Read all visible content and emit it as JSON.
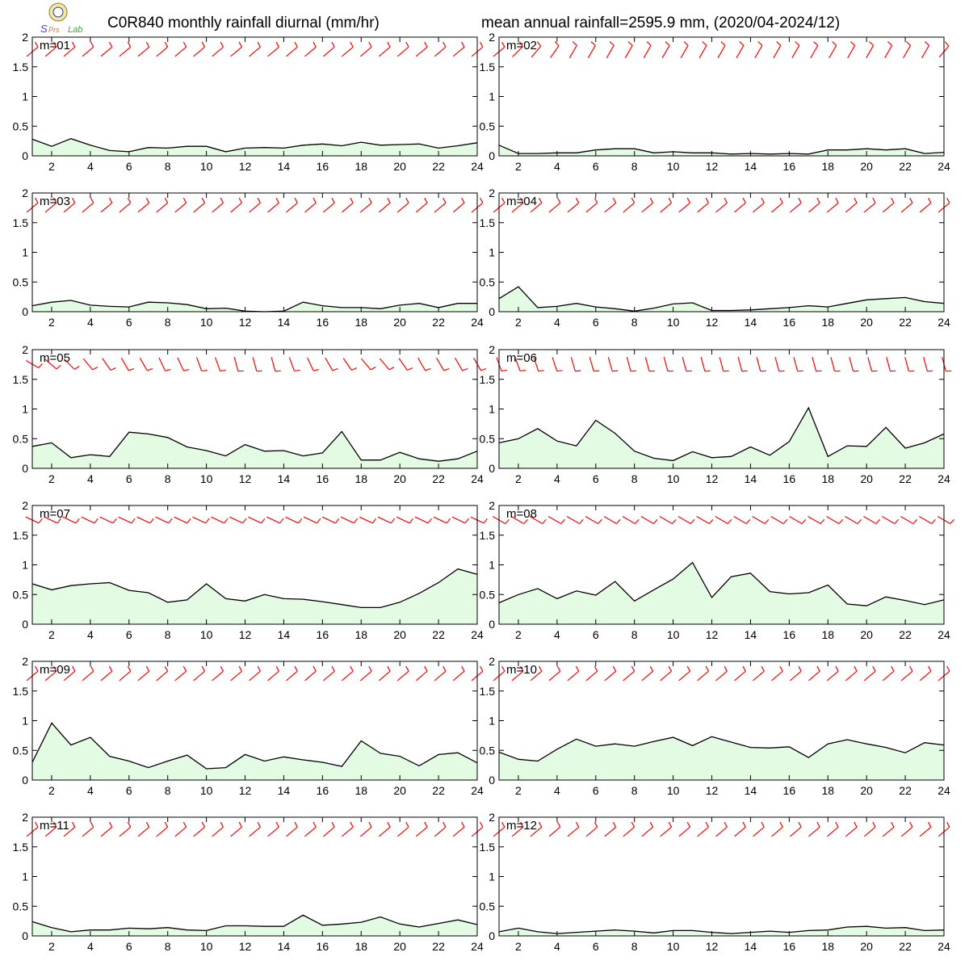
{
  "header": {
    "title_left": "C0R840 monthly rainfall diurnal (mm/hr)",
    "title_right": "mean annual rainfall=2595.9 mm, (2020/04-2024/12)"
  },
  "logo": {
    "icon": "lab-logo-icon",
    "text": "Lab"
  },
  "colors": {
    "fill": "#e3fbe3",
    "line": "#000000",
    "wind_barb": "#ff0000"
  },
  "chart_data": {
    "type": "area",
    "panel_count": 12,
    "x": [
      1,
      2,
      3,
      4,
      5,
      6,
      7,
      8,
      9,
      10,
      11,
      12,
      13,
      14,
      15,
      16,
      17,
      18,
      19,
      20,
      21,
      22,
      23,
      24
    ],
    "xlim": [
      1,
      24
    ],
    "ylim": [
      0,
      2
    ],
    "x_tick_labels": [
      "2",
      "4",
      "6",
      "8",
      "10",
      "12",
      "14",
      "16",
      "18",
      "20",
      "22",
      "24"
    ],
    "y_tick_labels": [
      "0",
      "0.5",
      "1",
      "1.5",
      "2"
    ],
    "grid": false,
    "wind_barbs": "red barbs along the top of each panel, one per hour",
    "panels": [
      {
        "label": "m=01",
        "values": [
          0.28,
          0.16,
          0.29,
          0.18,
          0.09,
          0.07,
          0.14,
          0.13,
          0.16,
          0.16,
          0.07,
          0.13,
          0.14,
          0.13,
          0.18,
          0.2,
          0.17,
          0.23,
          0.18,
          0.19,
          0.2,
          0.13,
          0.17,
          0.22
        ],
        "barb_angles": [
          40,
          40,
          40,
          40,
          40,
          40,
          40,
          40,
          40,
          40,
          40,
          40,
          40,
          40,
          40,
          40,
          40,
          40,
          40,
          40,
          40,
          40,
          40,
          40,
          40
        ]
      },
      {
        "label": "m=02",
        "values": [
          0.18,
          0.04,
          0.04,
          0.05,
          0.05,
          0.1,
          0.12,
          0.12,
          0.05,
          0.07,
          0.05,
          0.05,
          0.03,
          0.04,
          0.03,
          0.04,
          0.03,
          0.1,
          0.1,
          0.12,
          0.1,
          0.12,
          0.04,
          0.06
        ],
        "barb_angles": [
          40,
          45,
          50,
          55,
          60,
          60,
          60,
          60,
          60,
          60,
          60,
          60,
          60,
          60,
          60,
          60,
          60,
          60,
          60,
          60,
          60,
          60,
          60,
          60,
          50
        ]
      },
      {
        "label": "m=03",
        "values": [
          0.1,
          0.16,
          0.19,
          0.11,
          0.09,
          0.08,
          0.16,
          0.15,
          0.12,
          0.05,
          0.06,
          0.01,
          0.0,
          0.01,
          0.16,
          0.1,
          0.07,
          0.07,
          0.05,
          0.11,
          0.14,
          0.07,
          0.14,
          0.14
        ],
        "barb_angles": [
          40,
          40,
          40,
          40,
          40,
          40,
          40,
          40,
          40,
          40,
          40,
          40,
          40,
          40,
          40,
          40,
          40,
          40,
          40,
          40,
          40,
          40,
          40,
          40,
          40
        ]
      },
      {
        "label": "m=04",
        "values": [
          0.22,
          0.42,
          0.07,
          0.09,
          0.14,
          0.08,
          0.05,
          0.01,
          0.06,
          0.13,
          0.15,
          0.02,
          0.02,
          0.03,
          0.05,
          0.07,
          0.1,
          0.08,
          0.14,
          0.2,
          0.22,
          0.24,
          0.17,
          0.14
        ],
        "barb_angles": [
          40,
          40,
          40,
          40,
          40,
          40,
          40,
          40,
          40,
          40,
          40,
          40,
          40,
          40,
          40,
          40,
          40,
          40,
          40,
          40,
          40,
          40,
          40,
          40,
          40
        ]
      },
      {
        "label": "m=05",
        "values": [
          0.37,
          0.43,
          0.18,
          0.23,
          0.2,
          0.61,
          0.58,
          0.52,
          0.36,
          0.3,
          0.21,
          0.4,
          0.29,
          0.3,
          0.21,
          0.26,
          0.62,
          0.14,
          0.14,
          0.27,
          0.16,
          0.12,
          0.16,
          0.29
        ],
        "barb_angles": [
          -30,
          -40,
          -45,
          -50,
          -55,
          -60,
          -60,
          -65,
          -65,
          -70,
          -70,
          -75,
          -75,
          -75,
          -70,
          -65,
          -60,
          -55,
          -50,
          -50,
          -55,
          -60,
          -60,
          -60,
          -60
        ]
      },
      {
        "label": "m=06",
        "values": [
          0.43,
          0.5,
          0.67,
          0.46,
          0.38,
          0.81,
          0.59,
          0.29,
          0.17,
          0.13,
          0.28,
          0.18,
          0.2,
          0.36,
          0.22,
          0.45,
          1.02,
          0.2,
          0.38,
          0.37,
          0.69,
          0.34,
          0.43,
          0.58
        ],
        "barb_angles": [
          -70,
          -70,
          -72,
          -72,
          -74,
          -74,
          -74,
          -75,
          -75,
          -75,
          -75,
          -75,
          -75,
          -75,
          -75,
          -75,
          -75,
          -75,
          -75,
          -75,
          -75,
          -75,
          -75,
          -75,
          -75
        ]
      },
      {
        "label": "m=07",
        "values": [
          0.68,
          0.58,
          0.65,
          0.68,
          0.7,
          0.57,
          0.53,
          0.37,
          0.41,
          0.68,
          0.43,
          0.39,
          0.5,
          0.43,
          0.42,
          0.38,
          0.33,
          0.28,
          0.28,
          0.37,
          0.52,
          0.7,
          0.93,
          0.84
        ],
        "barb_angles": [
          -25,
          -25,
          -25,
          -25,
          -25,
          -25,
          -25,
          -25,
          -25,
          -25,
          -25,
          -25,
          -25,
          -25,
          -25,
          -25,
          -25,
          -25,
          -25,
          -25,
          -25,
          -25,
          -25,
          -25,
          -25
        ]
      },
      {
        "label": "m=08",
        "values": [
          0.36,
          0.5,
          0.6,
          0.43,
          0.56,
          0.49,
          0.72,
          0.39,
          0.58,
          0.76,
          1.04,
          0.45,
          0.8,
          0.86,
          0.55,
          0.51,
          0.53,
          0.66,
          0.34,
          0.31,
          0.46,
          0.4,
          0.33,
          0.41
        ],
        "barb_angles": [
          -30,
          -30,
          -30,
          -30,
          -30,
          -30,
          -30,
          -30,
          -30,
          -30,
          -30,
          -30,
          -30,
          -30,
          -30,
          -30,
          -30,
          -30,
          -30,
          -30,
          -30,
          -30,
          -30,
          -30,
          -30
        ]
      },
      {
        "label": "m=09",
        "values": [
          0.3,
          0.96,
          0.59,
          0.72,
          0.4,
          0.32,
          0.21,
          0.32,
          0.42,
          0.19,
          0.21,
          0.43,
          0.32,
          0.39,
          0.34,
          0.3,
          0.23,
          0.66,
          0.45,
          0.4,
          0.24,
          0.43,
          0.46,
          0.29
        ],
        "barb_angles": [
          40,
          40,
          40,
          40,
          40,
          40,
          40,
          40,
          40,
          40,
          40,
          40,
          40,
          40,
          40,
          40,
          40,
          40,
          40,
          40,
          40,
          40,
          40,
          40,
          40
        ]
      },
      {
        "label": "m=10",
        "values": [
          0.47,
          0.35,
          0.32,
          0.52,
          0.69,
          0.57,
          0.61,
          0.57,
          0.65,
          0.72,
          0.58,
          0.73,
          0.64,
          0.55,
          0.54,
          0.56,
          0.38,
          0.61,
          0.68,
          0.61,
          0.55,
          0.46,
          0.63,
          0.59
        ],
        "barb_angles": [
          40,
          40,
          40,
          40,
          40,
          40,
          40,
          40,
          40,
          40,
          40,
          40,
          40,
          40,
          40,
          40,
          40,
          40,
          40,
          40,
          40,
          40,
          40,
          40,
          40
        ]
      },
      {
        "label": "m=11",
        "values": [
          0.24,
          0.14,
          0.07,
          0.1,
          0.1,
          0.13,
          0.12,
          0.14,
          0.1,
          0.09,
          0.17,
          0.17,
          0.16,
          0.16,
          0.35,
          0.18,
          0.2,
          0.23,
          0.32,
          0.2,
          0.15,
          0.21,
          0.27,
          0.19
        ],
        "barb_angles": [
          40,
          40,
          40,
          40,
          40,
          40,
          40,
          40,
          40,
          40,
          40,
          40,
          40,
          40,
          40,
          40,
          40,
          40,
          40,
          40,
          40,
          40,
          40,
          40,
          40
        ]
      },
      {
        "label": "m=12",
        "values": [
          0.07,
          0.13,
          0.07,
          0.04,
          0.06,
          0.08,
          0.1,
          0.08,
          0.05,
          0.09,
          0.09,
          0.06,
          0.04,
          0.06,
          0.08,
          0.06,
          0.09,
          0.1,
          0.15,
          0.16,
          0.13,
          0.14,
          0.09,
          0.1
        ],
        "barb_angles": [
          40,
          40,
          40,
          40,
          40,
          40,
          40,
          40,
          40,
          40,
          40,
          40,
          40,
          40,
          40,
          40,
          40,
          40,
          40,
          40,
          40,
          40,
          40,
          40,
          40
        ]
      }
    ]
  }
}
